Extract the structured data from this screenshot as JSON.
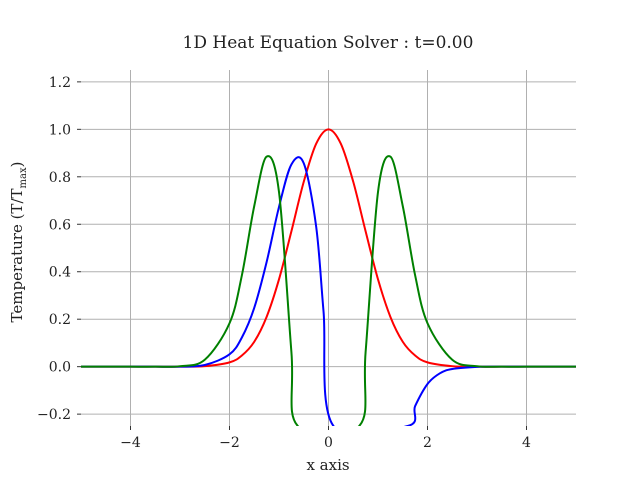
{
  "chart_data": {
    "type": "line",
    "title": "1D Heat Equation Solver : t=0.00",
    "xlabel": "x axis",
    "ylabel": "Temperature (T/T",
    "ylabel_subscript": "max",
    "ylabel_suffix": ")",
    "xlim": [
      -5,
      5
    ],
    "ylim": [
      -0.25,
      1.25
    ],
    "grid": true,
    "legend": "none",
    "x_ticks": [
      -4,
      -2,
      0,
      2,
      4
    ],
    "x_tick_labels": [
      "−4",
      "−2",
      "0",
      "2",
      "4"
    ],
    "y_ticks": [
      -0.2,
      0.0,
      0.2,
      0.4,
      0.6,
      0.8,
      1.0,
      1.2
    ],
    "y_tick_labels": [
      "−0.2",
      "0.0",
      "0.2",
      "0.4",
      "0.6",
      "0.8",
      "1.0",
      "1.2"
    ],
    "series": [
      {
        "color": "#ff0000",
        "x": [
          -5,
          -4.5,
          -4,
          -3.5,
          -3,
          -2.5,
          -2,
          -1.75,
          -1.5,
          -1.25,
          -1,
          -0.75,
          -0.5,
          -0.25,
          0,
          0.25,
          0.5,
          0.75,
          1,
          1.25,
          1.5,
          1.75,
          2,
          2.5,
          3,
          3.5,
          4,
          4.5,
          5
        ],
        "y": [
          0.0,
          0.0,
          0.0,
          0.0,
          0.0,
          0.002,
          0.018,
          0.047,
          0.105,
          0.21,
          0.368,
          0.57,
          0.779,
          0.939,
          1.0,
          0.939,
          0.779,
          0.57,
          0.368,
          0.21,
          0.105,
          0.047,
          0.018,
          0.002,
          0.0,
          0.0,
          0.0,
          0.0,
          0.0
        ]
      },
      {
        "color": "#0000ff",
        "x": [
          -5,
          -4.5,
          -4,
          -3.5,
          -3,
          -2.5,
          -2,
          -1.75,
          -1.5,
          -1.25,
          -1,
          -0.75,
          -0.5,
          -0.25,
          -0.1,
          0.1,
          1.6,
          1.75,
          2,
          2.25,
          2.5,
          3,
          3.5,
          4,
          4.5,
          5
        ],
        "y": [
          0.0,
          0.0,
          0.0,
          0.0,
          0.0,
          0.007,
          0.052,
          0.123,
          0.248,
          0.441,
          0.673,
          0.852,
          0.857,
          0.591,
          0.232,
          -0.25,
          -0.25,
          -0.166,
          -0.073,
          -0.028,
          -0.01,
          -0.001,
          0.0,
          0.0,
          0.0,
          0.0
        ]
      },
      {
        "color": "#008000",
        "x": [
          -5,
          -4.5,
          -4,
          -3.5,
          -3,
          -2.5,
          -2,
          -1.75,
          -1.5,
          -1.25,
          -1,
          -0.75,
          -0.62,
          0.62,
          0.75,
          1,
          1.25,
          1.5,
          1.75,
          2,
          2.5,
          3,
          3.5,
          4,
          4.5,
          5
        ],
        "y": [
          0.0,
          0.0,
          0.0,
          0.0,
          0.002,
          0.029,
          0.183,
          0.385,
          0.677,
          0.885,
          0.736,
          0.063,
          -0.25,
          -0.25,
          0.063,
          0.736,
          0.885,
          0.677,
          0.385,
          0.183,
          0.029,
          0.002,
          0.0,
          0.0,
          0.0,
          0.0
        ]
      }
    ]
  }
}
